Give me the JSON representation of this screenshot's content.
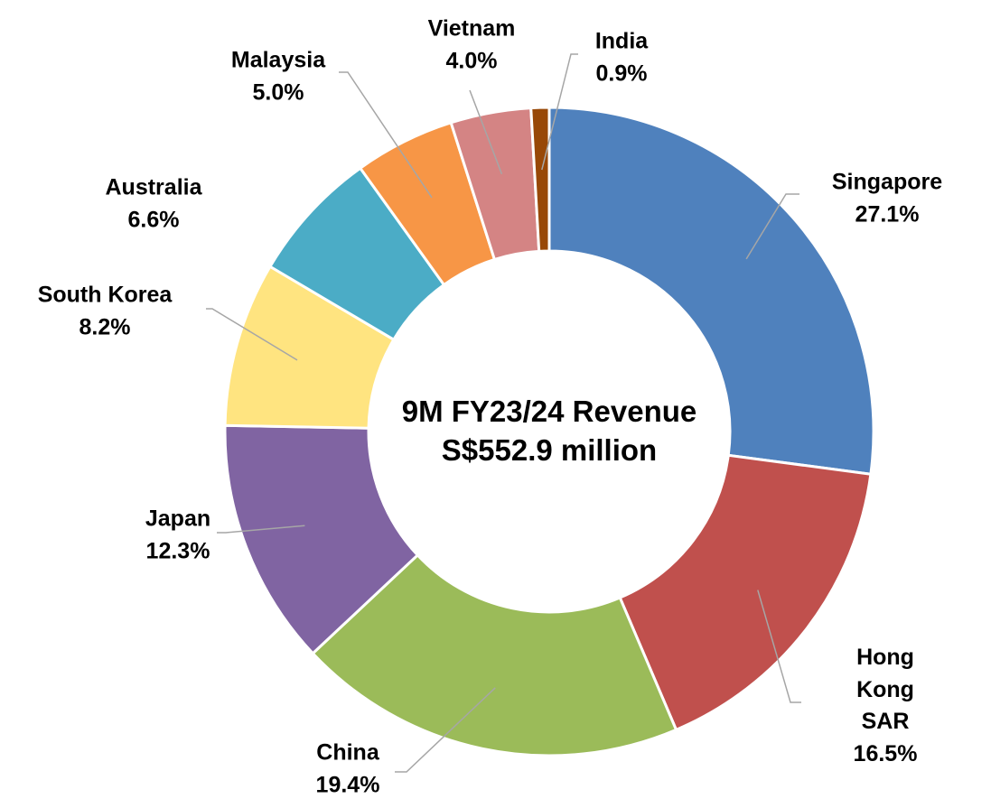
{
  "chart_data": {
    "type": "donut",
    "annotations": [
      "9M FY23/24 Revenue",
      "S$552.9 million"
    ],
    "categories": [
      "Singapore",
      "Hong Kong SAR",
      "China",
      "Japan",
      "South Korea",
      "Australia",
      "Malaysia",
      "Vietnam",
      "India"
    ],
    "values": [
      27.1,
      16.5,
      19.4,
      12.3,
      8.2,
      6.6,
      5.0,
      4.0,
      0.9
    ],
    "value_labels": [
      "27.1%",
      "16.5%",
      "19.4%",
      "12.3%",
      "8.2%",
      "6.6%",
      "5.0%",
      "4.0%",
      "0.9%"
    ],
    "colors": [
      "#4f81bd",
      "#c0504d",
      "#9bbb59",
      "#8064a2",
      "#ffe480",
      "#4bacc6",
      "#f79646",
      "#d48484",
      "#984807"
    ]
  }
}
